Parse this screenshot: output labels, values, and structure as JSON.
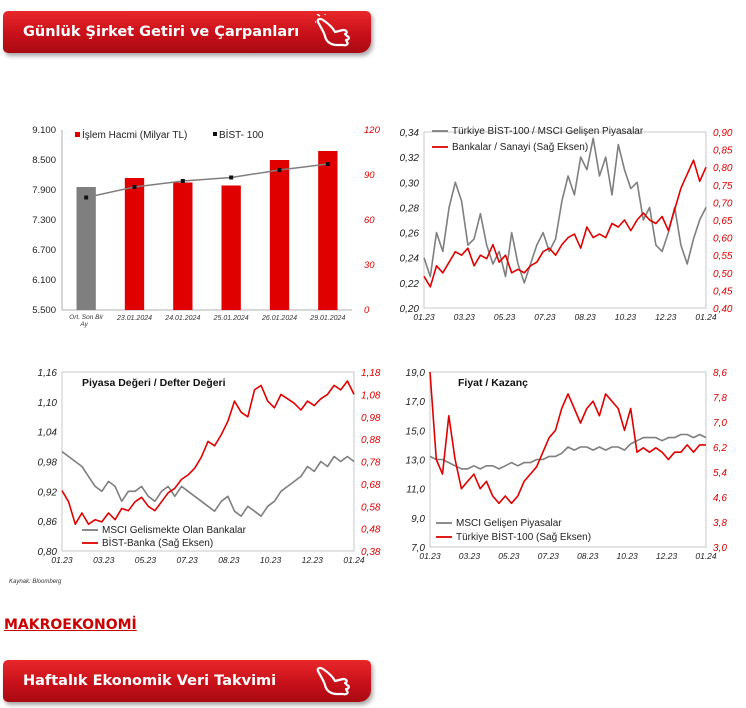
{
  "header_banner": {
    "title": "Günlük Şirket Getiri ve Çarpanları"
  },
  "section_title": "MAKROEKONOMİ",
  "footer_banner": {
    "title": "Haftalık Ekonomik Veri Takvimi"
  },
  "source_note": "Kaynak: Bloomberg",
  "icons": {
    "banner_icon": "pointing-hand-icon"
  },
  "colors": {
    "red": "#e00000",
    "gray": "#7f7f7f",
    "bist": "#333333"
  },
  "chart_data": [
    {
      "type": "bar",
      "categories": [
        "Ort. Son Bir Ay",
        "23.01.2024",
        "24.01.2024",
        "25.01.2024",
        "26.01.2024",
        "29.01.2024"
      ],
      "series": [
        {
          "name": "İşlem Hacmi (Milyar TL)",
          "axis": "right",
          "values": [
            82,
            88,
            85,
            83,
            100,
            106
          ],
          "colors": [
            "#7f7f7f",
            "#e00000",
            "#e00000",
            "#e00000",
            "#e00000",
            "#e00000"
          ]
        },
        {
          "name": "BİST- 100",
          "type": "line",
          "axis": "left",
          "values": [
            7750,
            7960,
            8080,
            8150,
            8300,
            8420
          ]
        }
      ],
      "y_left": {
        "ylim": [
          5500,
          9100
        ],
        "ticks": [
          "9.100",
          "8.500",
          "7.900",
          "7.300",
          "6.700",
          "6.100",
          "5.500"
        ]
      },
      "y_right": {
        "ylim": [
          0,
          120
        ],
        "ticks": [
          "120",
          "90",
          "60",
          "30",
          "0"
        ]
      },
      "legend": "top"
    },
    {
      "type": "line",
      "x_ticks": [
        "01.23",
        "03.23",
        "05.23",
        "07.23",
        "08.23",
        "10.23",
        "12.23",
        "01.24"
      ],
      "series": [
        {
          "name": "Türkiye BİST-100 / MSCI Gelişen Piyasalar",
          "axis": "left",
          "color": "#7f7f7f",
          "values": [
            0.24,
            0.225,
            0.26,
            0.245,
            0.28,
            0.3,
            0.285,
            0.25,
            0.255,
            0.275,
            0.25,
            0.235,
            0.245,
            0.225,
            0.26,
            0.235,
            0.22,
            0.235,
            0.25,
            0.26,
            0.245,
            0.255,
            0.285,
            0.305,
            0.29,
            0.32,
            0.31,
            0.335,
            0.305,
            0.32,
            0.29,
            0.33,
            0.31,
            0.295,
            0.3,
            0.27,
            0.28,
            0.25,
            0.245,
            0.26,
            0.28,
            0.25,
            0.235,
            0.255,
            0.27,
            0.28
          ]
        },
        {
          "name": "Bankalar / Sanayi (Sağ Eksen)",
          "axis": "right",
          "color": "#e00000",
          "values": [
            0.49,
            0.46,
            0.52,
            0.5,
            0.53,
            0.56,
            0.55,
            0.57,
            0.52,
            0.55,
            0.54,
            0.58,
            0.53,
            0.55,
            0.5,
            0.51,
            0.5,
            0.52,
            0.53,
            0.56,
            0.57,
            0.55,
            0.58,
            0.6,
            0.61,
            0.57,
            0.63,
            0.6,
            0.61,
            0.6,
            0.64,
            0.63,
            0.65,
            0.62,
            0.65,
            0.67,
            0.65,
            0.64,
            0.66,
            0.62,
            0.68,
            0.74,
            0.78,
            0.82,
            0.76,
            0.8
          ]
        }
      ],
      "y_left": {
        "ylim": [
          0.2,
          0.34
        ],
        "ticks": [
          "0,34",
          "0,32",
          "0,30",
          "0,28",
          "0,26",
          "0,24",
          "0,22",
          "0,20"
        ]
      },
      "y_right": {
        "ylim": [
          0.4,
          0.9
        ],
        "ticks": [
          "0,90",
          "0,85",
          "0,80",
          "0,75",
          "0,70",
          "0,65",
          "0,60",
          "0,55",
          "0,50",
          "0,45",
          "0,40"
        ]
      },
      "legend": "top"
    },
    {
      "type": "line",
      "title": "Piyasa Değeri / Defter Değeri",
      "x_ticks": [
        "01.23",
        "03.23",
        "05.23",
        "07.23",
        "08.23",
        "10.23",
        "12.23",
        "01.24"
      ],
      "series": [
        {
          "name": "MSCI Gelismekte Olan Bankalar",
          "axis": "left",
          "color": "#7f7f7f",
          "values": [
            1.0,
            0.99,
            0.98,
            0.97,
            0.95,
            0.93,
            0.92,
            0.94,
            0.93,
            0.9,
            0.92,
            0.92,
            0.93,
            0.91,
            0.9,
            0.92,
            0.93,
            0.91,
            0.93,
            0.92,
            0.91,
            0.9,
            0.89,
            0.88,
            0.9,
            0.91,
            0.88,
            0.87,
            0.89,
            0.88,
            0.87,
            0.89,
            0.9,
            0.92,
            0.93,
            0.94,
            0.95,
            0.97,
            0.96,
            0.98,
            0.97,
            0.99,
            0.98,
            0.99,
            0.98
          ]
        },
        {
          "name": "BİST-Banka (Sağ Eksen)",
          "axis": "right",
          "color": "#e00000",
          "values": [
            0.65,
            0.6,
            0.5,
            0.55,
            0.5,
            0.52,
            0.51,
            0.55,
            0.52,
            0.57,
            0.56,
            0.6,
            0.62,
            0.58,
            0.56,
            0.6,
            0.64,
            0.66,
            0.7,
            0.72,
            0.75,
            0.8,
            0.87,
            0.85,
            0.9,
            0.96,
            1.05,
            1.0,
            0.98,
            1.1,
            1.12,
            1.05,
            1.02,
            1.08,
            1.06,
            1.04,
            1.01,
            1.05,
            1.03,
            1.06,
            1.08,
            1.12,
            1.1,
            1.14,
            1.08
          ]
        }
      ],
      "y_left": {
        "ylim": [
          0.8,
          1.16
        ],
        "ticks": [
          "1,16",
          "1,10",
          "1,04",
          "0,98",
          "0,92",
          "0,86",
          "0,80"
        ]
      },
      "y_right": {
        "ylim": [
          0.38,
          1.18
        ],
        "ticks": [
          "1,18",
          "1,08",
          "0,98",
          "0,88",
          "0,78",
          "0,68",
          "0,58",
          "0,48",
          "0,38"
        ]
      },
      "legend": "bottom-left"
    },
    {
      "type": "line",
      "title": "Fiyat / Kazanç",
      "x_ticks": [
        "01.23",
        "03.23",
        "05.23",
        "07.23",
        "08.23",
        "10.23",
        "12.23",
        "01.24"
      ],
      "series": [
        {
          "name": "MSCI Gelişen Piyasalar",
          "axis": "right",
          "color": "#7f7f7f",
          "values": [
            5.9,
            5.8,
            5.8,
            5.7,
            5.6,
            5.5,
            5.5,
            5.6,
            5.5,
            5.6,
            5.6,
            5.5,
            5.6,
            5.7,
            5.6,
            5.7,
            5.7,
            5.8,
            5.8,
            5.9,
            5.9,
            6.0,
            6.2,
            6.1,
            6.2,
            6.2,
            6.1,
            6.2,
            6.1,
            6.2,
            6.2,
            6.1,
            6.3,
            6.4,
            6.5,
            6.5,
            6.5,
            6.4,
            6.5,
            6.5,
            6.6,
            6.6,
            6.5,
            6.6,
            6.5
          ]
        },
        {
          "name": "Türkiye BİST-100 (Sağ Eksen)",
          "axis": "left",
          "color": "#e00000",
          "values": [
            19.0,
            13.0,
            12.0,
            16.0,
            13.0,
            11.0,
            11.5,
            12.0,
            11.0,
            11.5,
            10.5,
            10.0,
            10.5,
            10.0,
            10.5,
            11.5,
            12.0,
            12.5,
            13.5,
            14.5,
            15.0,
            16.5,
            17.5,
            16.5,
            15.5,
            16.5,
            17.0,
            16.0,
            17.5,
            17.0,
            16.5,
            15.0,
            16.5,
            13.5,
            13.8,
            13.5,
            13.8,
            13.5,
            13.0,
            13.5,
            13.5,
            14.0,
            13.5,
            14.0,
            14.0
          ]
        }
      ],
      "y_left": {
        "ylim": [
          7,
          19
        ],
        "ticks": [
          "19,0",
          "17,0",
          "15,0",
          "13,0",
          "11,0",
          "9,0",
          "7,0"
        ]
      },
      "y_right": {
        "ylim": [
          3,
          8.6
        ],
        "ticks": [
          "8,6",
          "7,8",
          "7,0",
          "6,2",
          "5,4",
          "4,6",
          "3,8",
          "3,0"
        ]
      },
      "legend": "bottom-right"
    }
  ]
}
